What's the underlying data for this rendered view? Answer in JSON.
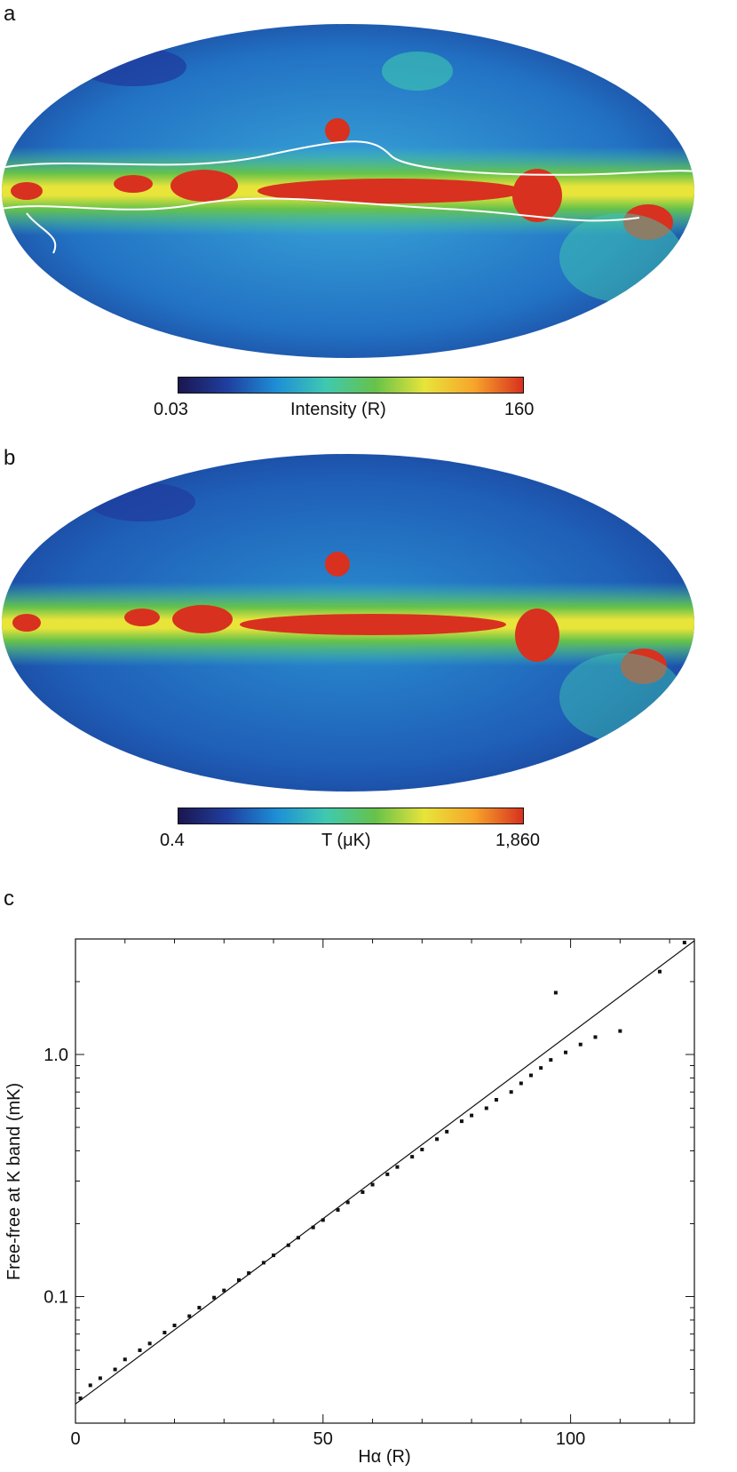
{
  "chart_data": [
    {
      "panel": "a",
      "type": "heatmap",
      "colorbar": {
        "min_label": "0.03",
        "label": "Intensity (R)",
        "max_label": "160",
        "colors": [
          "#1b1650",
          "#1f3fa0",
          "#1e8fd6",
          "#3fc9b0",
          "#66c24a",
          "#e8e43a",
          "#f7a52b",
          "#d8311f"
        ]
      }
    },
    {
      "panel": "b",
      "type": "heatmap",
      "colorbar": {
        "min_label": "0.4",
        "label": "T (μK)",
        "max_label": "1,860",
        "colors": [
          "#1b1650",
          "#1f3fa0",
          "#1e8fd6",
          "#3fc9b0",
          "#66c24a",
          "#e8e43a",
          "#f7a52b",
          "#d8311f"
        ]
      }
    },
    {
      "panel": "c",
      "type": "scatter",
      "xlabel": "Hα (R)",
      "ylabel": "Free-free at K band (mK)",
      "xlim": [
        0,
        125
      ],
      "ylim": [
        0.03,
        3.0
      ],
      "yscale": "log",
      "xticks": [
        0,
        50,
        100
      ],
      "xtick_labels": [
        "0",
        "50",
        "100"
      ],
      "yticks": [
        0.1,
        1.0
      ],
      "ytick_labels": [
        "0.1",
        "1.0"
      ],
      "fit_line": {
        "x": [
          0,
          125
        ],
        "y": [
          0.036,
          2.95
        ]
      },
      "points": [
        {
          "x": 1,
          "y": 0.038
        },
        {
          "x": 3,
          "y": 0.043
        },
        {
          "x": 5,
          "y": 0.046
        },
        {
          "x": 8,
          "y": 0.05
        },
        {
          "x": 10,
          "y": 0.055
        },
        {
          "x": 13,
          "y": 0.06
        },
        {
          "x": 15,
          "y": 0.064
        },
        {
          "x": 18,
          "y": 0.071
        },
        {
          "x": 20,
          "y": 0.076
        },
        {
          "x": 23,
          "y": 0.083
        },
        {
          "x": 25,
          "y": 0.09
        },
        {
          "x": 28,
          "y": 0.099
        },
        {
          "x": 30,
          "y": 0.106
        },
        {
          "x": 33,
          "y": 0.117
        },
        {
          "x": 35,
          "y": 0.125
        },
        {
          "x": 38,
          "y": 0.138
        },
        {
          "x": 40,
          "y": 0.148
        },
        {
          "x": 43,
          "y": 0.163
        },
        {
          "x": 45,
          "y": 0.175
        },
        {
          "x": 48,
          "y": 0.193
        },
        {
          "x": 50,
          "y": 0.207
        },
        {
          "x": 53,
          "y": 0.228
        },
        {
          "x": 55,
          "y": 0.245
        },
        {
          "x": 58,
          "y": 0.27
        },
        {
          "x": 60,
          "y": 0.29
        },
        {
          "x": 63,
          "y": 0.32
        },
        {
          "x": 65,
          "y": 0.343
        },
        {
          "x": 68,
          "y": 0.378
        },
        {
          "x": 70,
          "y": 0.405
        },
        {
          "x": 73,
          "y": 0.447
        },
        {
          "x": 75,
          "y": 0.48
        },
        {
          "x": 78,
          "y": 0.53
        },
        {
          "x": 80,
          "y": 0.56
        },
        {
          "x": 83,
          "y": 0.6
        },
        {
          "x": 85,
          "y": 0.65
        },
        {
          "x": 88,
          "y": 0.7
        },
        {
          "x": 90,
          "y": 0.76
        },
        {
          "x": 92,
          "y": 0.82
        },
        {
          "x": 94,
          "y": 0.88
        },
        {
          "x": 96,
          "y": 0.95
        },
        {
          "x": 97,
          "y": 1.8
        },
        {
          "x": 99,
          "y": 1.02
        },
        {
          "x": 102,
          "y": 1.1
        },
        {
          "x": 105,
          "y": 1.18
        },
        {
          "x": 110,
          "y": 1.25
        },
        {
          "x": 118,
          "y": 2.2
        },
        {
          "x": 123,
          "y": 2.9
        }
      ]
    }
  ],
  "labels": {
    "panel_a": "a",
    "panel_b": "b",
    "panel_c": "c"
  }
}
